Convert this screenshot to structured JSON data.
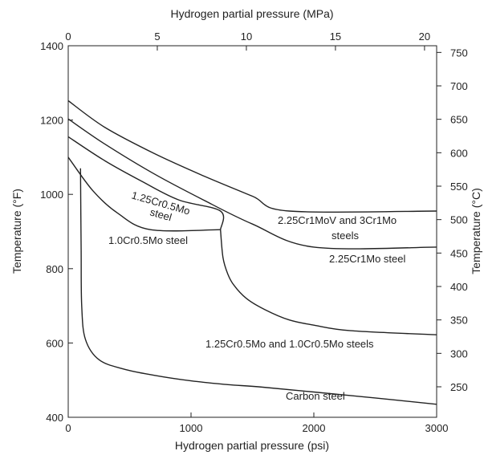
{
  "chart_data": {
    "type": "line",
    "grid": false,
    "x_bottom": {
      "label": "Hydrogen partial pressure (psi)",
      "range": [
        0,
        3000
      ],
      "ticks": [
        0,
        1000,
        2000,
        3000
      ]
    },
    "x_top": {
      "label": "Hydrogen partial pressure (MPa)",
      "range": [
        0,
        20.68
      ],
      "ticks": [
        0,
        5,
        10,
        15,
        20
      ]
    },
    "y_left": {
      "label": "Temperature (°F)",
      "range": [
        400,
        1400
      ],
      "ticks": [
        400,
        600,
        800,
        1000,
        1200,
        1400
      ]
    },
    "y_right": {
      "label": "Temperature (°C)",
      "range": [
        204.4,
        760
      ],
      "ticks": [
        250,
        300,
        350,
        400,
        450,
        500,
        550,
        600,
        650,
        700,
        750
      ]
    },
    "series": [
      {
        "name": "2.25Cr1MoV and 3Cr1Mo steels",
        "x": [
          0,
          300,
          700,
          1100,
          1500,
          1800,
          3000
        ],
        "y": [
          1252,
          1180,
          1110,
          1050,
          995,
          955,
          955
        ]
      },
      {
        "name": "2.25Cr1Mo steel",
        "x": [
          0,
          300,
          700,
          1100,
          1500,
          2000,
          3000
        ],
        "y": [
          1203,
          1135,
          1055,
          985,
          920,
          858,
          858
        ]
      },
      {
        "name": "1.25Cr0.5Mo steel",
        "x": [
          0,
          300,
          600,
          900,
          1240,
          1240
        ],
        "y": [
          1155,
          1090,
          1035,
          985,
          955,
          905
        ]
      },
      {
        "name": "1.0Cr0.5Mo steel",
        "x": [
          0,
          200,
          400,
          670,
          1240
        ],
        "y": [
          1100,
          1010,
          950,
          905,
          905
        ]
      },
      {
        "name": "1.25Cr0.5Mo and 1.0Cr0.5Mo steels",
        "x": [
          1240,
          1260,
          1300,
          1350,
          1450,
          1600,
          1800,
          2000,
          2300,
          3000
        ],
        "y": [
          905,
          830,
          785,
          755,
          720,
          690,
          662,
          648,
          633,
          622
        ]
      },
      {
        "name": "Carbon steel",
        "x": [
          100,
          105,
          110,
          140,
          250,
          450,
          700,
          1000,
          1300,
          1550,
          2000,
          2500,
          3000
        ],
        "y": [
          1070,
          850,
          700,
          610,
          555,
          530,
          513,
          498,
          488,
          482,
          468,
          452,
          435
        ]
      }
    ],
    "labels": {
      "crmov": {
        "line1": "2.25Cr1MoV and 3Cr1Mo",
        "line2": "steels"
      },
      "crmo225": "2.25Cr1Mo steel",
      "cr125": {
        "line1": "1.25Cr0.5Mo",
        "line2": "steel"
      },
      "cr10": "1.0Cr0.5Mo steel",
      "combined": "1.25Cr0.5Mo and 1.0Cr0.5Mo steels",
      "carbon": "Carbon steel"
    }
  }
}
